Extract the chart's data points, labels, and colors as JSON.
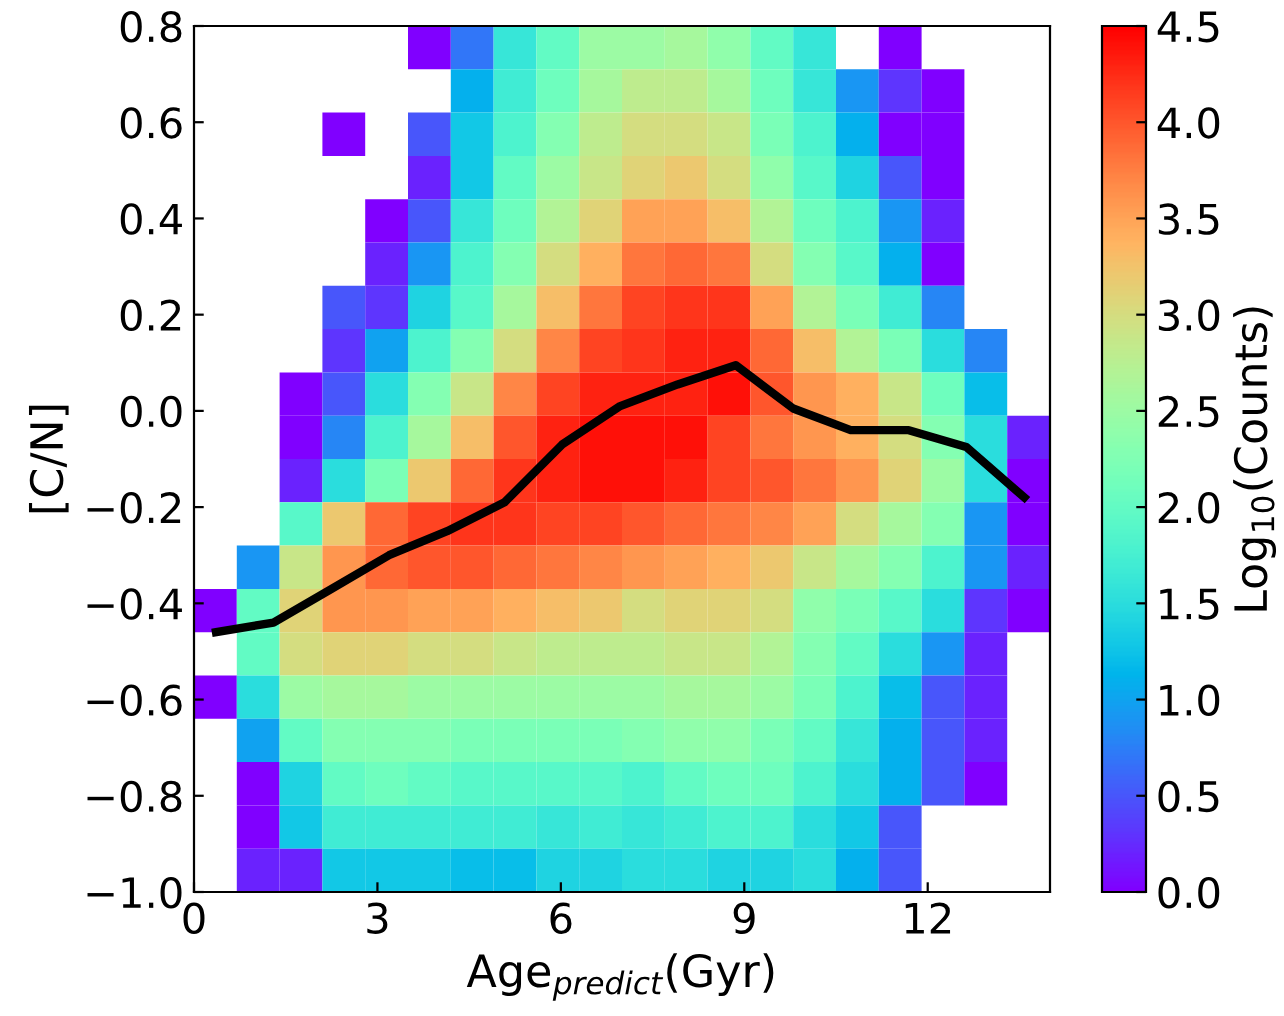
{
  "chart_data": {
    "type": "heatmap",
    "xlabel": "Age$_{predict}$(Gyr)",
    "ylabel": "[C/N]",
    "clabel": "Log$_{10}$(Counts)",
    "xlim": [
      0,
      14
    ],
    "xticks": [
      0,
      3,
      6,
      9,
      12
    ],
    "ylim": [
      -1.0,
      0.8
    ],
    "yticks": [
      {
        "value": -1.0,
        "label": "−1.0"
      },
      {
        "value": -0.8,
        "label": "−0.8"
      },
      {
        "value": -0.6,
        "label": "−0.6"
      },
      {
        "value": -0.4,
        "label": "−0.4"
      },
      {
        "value": -0.2,
        "label": "−0.2"
      },
      {
        "value": 0.0,
        "label": "0.0"
      },
      {
        "value": 0.2,
        "label": "0.2"
      },
      {
        "value": 0.4,
        "label": "0.4"
      },
      {
        "value": 0.6,
        "label": "0.6"
      },
      {
        "value": 0.8,
        "label": "0.8"
      }
    ],
    "clim": [
      0,
      4.5
    ],
    "cticks": [
      {
        "value": 0,
        "label": "0.0"
      },
      {
        "value": 0.5,
        "label": "0.5"
      },
      {
        "value": 1.0,
        "label": "1.0"
      },
      {
        "value": 1.5,
        "label": "1.5"
      },
      {
        "value": 2.0,
        "label": "2.0"
      },
      {
        "value": 2.5,
        "label": "2.5"
      },
      {
        "value": 3.0,
        "label": "3.0"
      },
      {
        "value": 3.5,
        "label": "3.5"
      },
      {
        "value": 4.0,
        "label": "4.0"
      },
      {
        "value": 4.5,
        "label": "4.5"
      }
    ],
    "cells": [
      [
        null,
        null,
        null,
        null,
        null,
        0.0,
        0.7,
        1.6,
        2.0,
        2.5,
        2.5,
        2.6,
        2.4,
        2.0,
        1.6,
        null,
        0.0,
        null,
        null,
        null
      ],
      [
        null,
        null,
        null,
        null,
        null,
        null,
        1.1,
        1.7,
        2.1,
        2.6,
        2.8,
        2.8,
        2.6,
        2.1,
        1.6,
        0.9,
        0.3,
        0.0,
        null,
        null
      ],
      [
        null,
        null,
        null,
        0.0,
        null,
        0.5,
        1.3,
        1.8,
        2.3,
        2.8,
        3.0,
        3.0,
        2.9,
        2.2,
        1.8,
        1.1,
        0.0,
        0.0,
        null,
        null
      ],
      [
        null,
        null,
        null,
        null,
        null,
        0.2,
        1.3,
        2.0,
        2.5,
        2.9,
        3.1,
        3.2,
        3.0,
        2.4,
        1.9,
        1.4,
        0.5,
        0.0,
        null,
        null
      ],
      [
        null,
        null,
        null,
        null,
        0.0,
        0.5,
        1.6,
        2.1,
        2.7,
        3.1,
        3.5,
        3.5,
        3.3,
        2.7,
        2.1,
        1.8,
        0.9,
        0.2,
        null,
        null
      ],
      [
        null,
        null,
        null,
        null,
        0.2,
        0.9,
        1.8,
        2.3,
        3.0,
        3.4,
        3.8,
        3.9,
        3.8,
        3.0,
        2.3,
        1.9,
        1.1,
        0.0,
        null,
        null
      ],
      [
        null,
        null,
        null,
        0.5,
        0.3,
        1.4,
        1.9,
        2.6,
        3.3,
        3.8,
        4.1,
        4.2,
        4.2,
        3.5,
        2.7,
        2.2,
        1.7,
        0.8,
        null,
        null
      ],
      [
        null,
        null,
        null,
        0.3,
        1.0,
        1.8,
        2.3,
        3.0,
        3.7,
        4.1,
        4.2,
        4.3,
        4.3,
        3.9,
        3.3,
        2.7,
        2.2,
        1.5,
        0.8,
        null
      ],
      [
        null,
        null,
        0.0,
        0.5,
        1.5,
        2.3,
        2.9,
        3.7,
        4.1,
        4.3,
        4.3,
        4.3,
        4.4,
        4.0,
        3.6,
        3.4,
        2.9,
        2.1,
        1.2,
        null
      ],
      [
        null,
        null,
        0.0,
        0.8,
        1.8,
        2.6,
        3.3,
        4.0,
        4.3,
        4.4,
        4.4,
        4.4,
        4.1,
        3.8,
        3.6,
        3.4,
        3.0,
        2.3,
        1.5,
        0.2
      ],
      [
        null,
        null,
        0.2,
        1.5,
        2.2,
        3.2,
        3.9,
        4.2,
        4.3,
        4.4,
        4.4,
        4.3,
        4.1,
        4.0,
        3.8,
        3.6,
        3.1,
        2.5,
        1.5,
        0.0
      ],
      [
        null,
        null,
        1.9,
        3.2,
        3.9,
        4.1,
        4.2,
        4.2,
        4.1,
        4.1,
        4.0,
        3.9,
        3.8,
        3.7,
        3.5,
        3.0,
        2.6,
        2.3,
        0.9,
        0.0
      ],
      [
        null,
        0.9,
        2.9,
        3.6,
        3.9,
        4.0,
        4.0,
        3.9,
        3.8,
        3.7,
        3.6,
        3.5,
        3.4,
        3.2,
        2.9,
        2.6,
        2.3,
        1.8,
        0.9,
        0.2
      ],
      [
        0.0,
        2.0,
        3.1,
        3.6,
        3.6,
        3.5,
        3.5,
        3.4,
        3.3,
        3.2,
        3.0,
        3.1,
        3.1,
        3.0,
        2.4,
        2.2,
        1.9,
        1.5,
        0.3,
        0.0
      ],
      [
        null,
        2.0,
        3.0,
        3.1,
        3.1,
        3.0,
        3.0,
        2.9,
        2.8,
        2.8,
        2.8,
        2.9,
        2.9,
        2.7,
        2.3,
        2.0,
        1.5,
        0.9,
        0.2,
        null
      ],
      [
        0.0,
        1.5,
        2.5,
        2.6,
        2.6,
        2.5,
        2.5,
        2.5,
        2.5,
        2.5,
        2.5,
        2.6,
        2.6,
        2.5,
        2.2,
        1.8,
        1.2,
        0.5,
        0.2,
        null
      ],
      [
        null,
        1.0,
        2.0,
        2.3,
        2.3,
        2.3,
        2.2,
        2.2,
        2.2,
        2.2,
        2.3,
        2.4,
        2.4,
        2.2,
        2.0,
        1.6,
        1.1,
        0.5,
        0.2,
        null
      ],
      [
        null,
        0.0,
        1.4,
        2.0,
        2.1,
        2.0,
        1.9,
        1.9,
        1.9,
        1.9,
        1.8,
        2.0,
        2.1,
        2.1,
        1.8,
        1.5,
        1.1,
        0.5,
        0.0,
        null
      ],
      [
        null,
        0.0,
        1.3,
        1.7,
        1.7,
        1.7,
        1.7,
        1.7,
        1.6,
        1.7,
        1.6,
        1.7,
        1.8,
        1.8,
        1.5,
        1.3,
        0.5,
        null,
        null,
        null
      ],
      [
        null,
        0.2,
        0.2,
        1.3,
        1.3,
        1.3,
        1.2,
        1.2,
        1.4,
        1.4,
        1.5,
        1.5,
        1.4,
        1.4,
        1.5,
        1.1,
        0.5,
        null,
        null,
        null
      ]
    ],
    "series": [
      {
        "type": "line",
        "color": "#000000",
        "x": [
          0.36,
          1.3,
          2.25,
          3.19,
          4.14,
          5.08,
          6.02,
          6.97,
          7.91,
          8.86,
          9.8,
          10.74,
          11.69,
          12.63,
          13.58
        ],
        "values": [
          -0.46,
          -0.44,
          -0.37,
          -0.3,
          -0.25,
          -0.19,
          -0.07,
          0.01,
          0.055,
          0.095,
          0.005,
          -0.04,
          -0.04,
          -0.075,
          -0.18
        ]
      }
    ]
  }
}
